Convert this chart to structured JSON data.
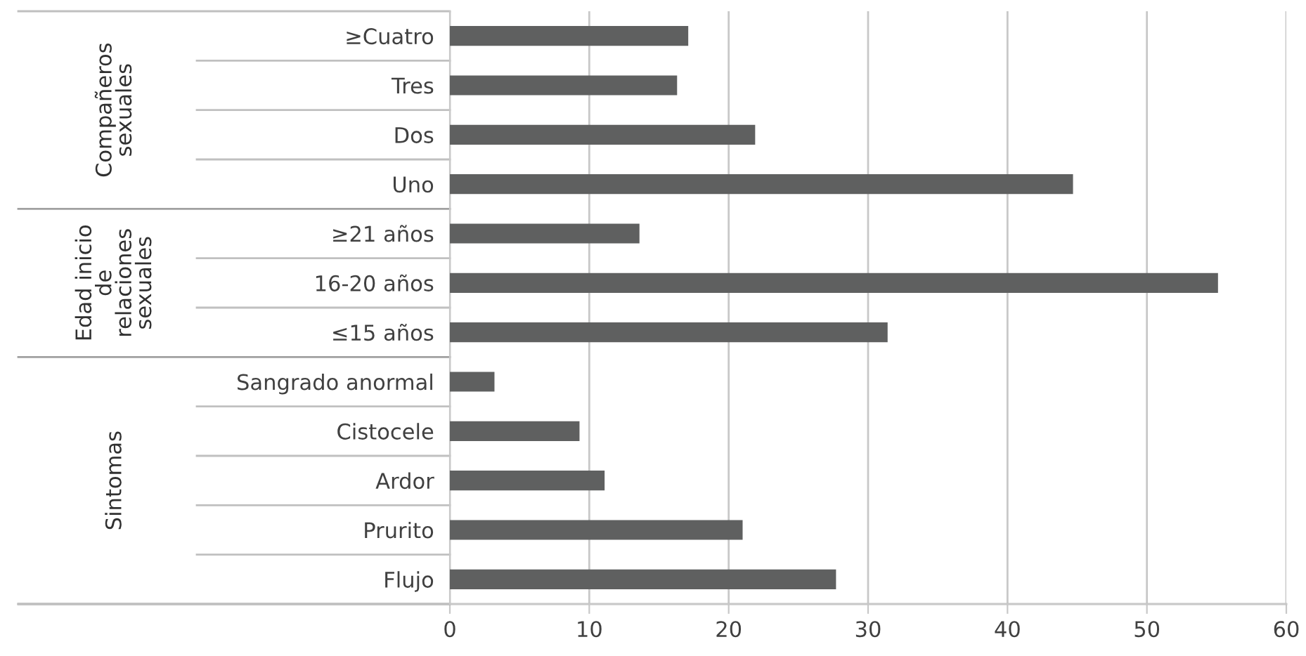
{
  "chart_data": {
    "type": "bar",
    "orientation": "horizontal",
    "categories": [
      "≥Cuatro",
      "Tres",
      "Dos",
      "Uno",
      "≥21 años",
      "16-20 años",
      "≤15 años",
      "Sangrado anormal",
      "Cistocele",
      "Ardor",
      "Prurito",
      "Flujo"
    ],
    "values": [
      17.1,
      16.3,
      21.9,
      44.7,
      13.6,
      55.1,
      31.4,
      3.2,
      9.3,
      11.1,
      21.0,
      27.7
    ],
    "color": "#5f6060",
    "xlim": [
      0,
      60
    ],
    "xticks": [
      0,
      10,
      20,
      30,
      40,
      50,
      60
    ],
    "grid": "x",
    "annotations": [
      "Compañeros\nsexuales",
      "Edad inicio\nde\nrelaciones\nsexuales",
      "Sintomas"
    ]
  }
}
